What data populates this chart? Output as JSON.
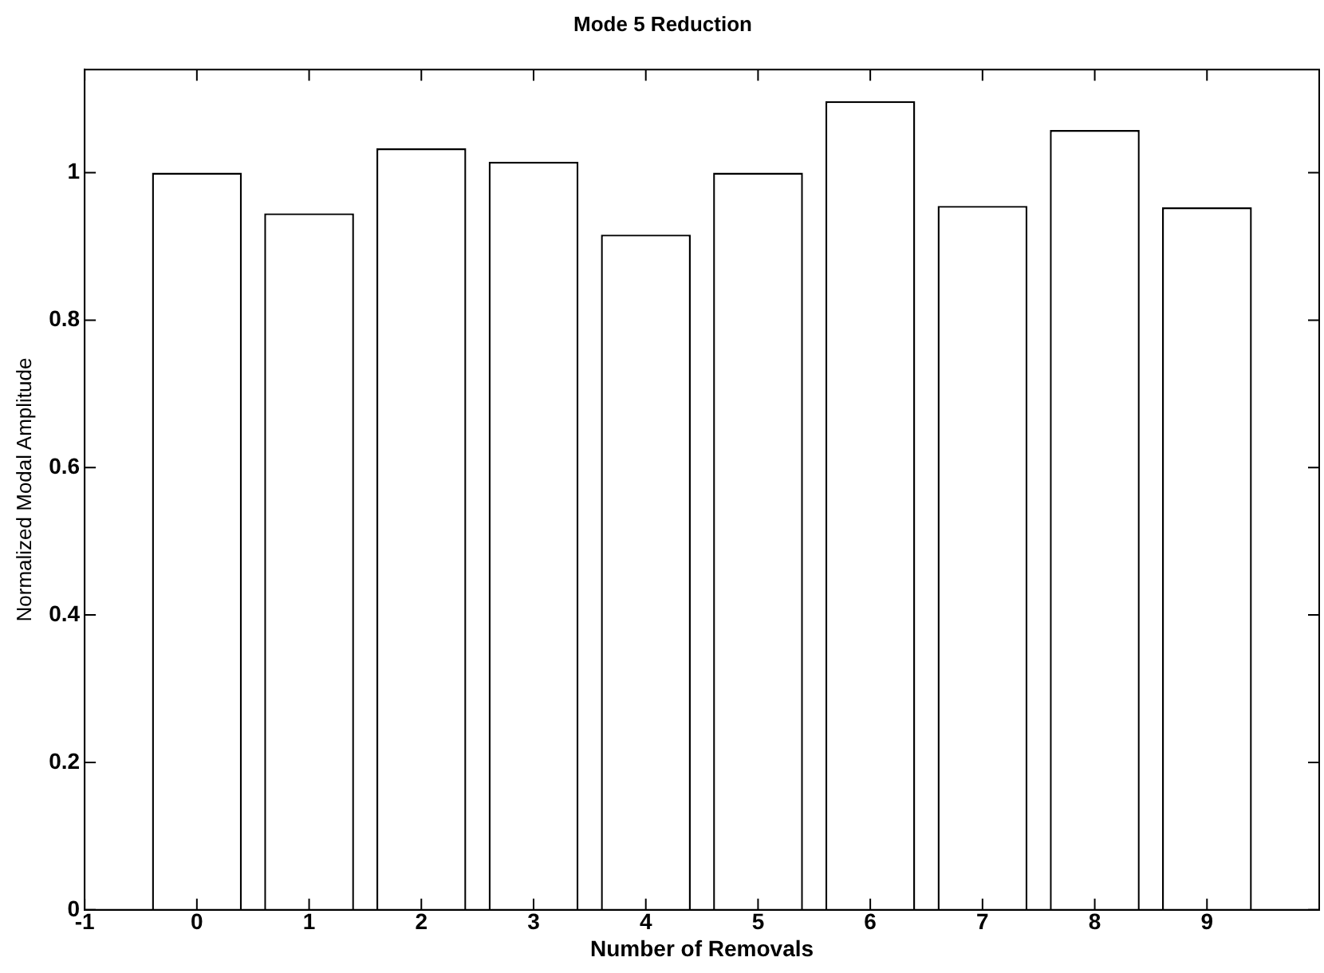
{
  "chart_data": {
    "type": "bar",
    "title": "Mode 5 Reduction",
    "xlabel": "Number of Removals",
    "ylabel": "Normalized Modal Amplitude",
    "x": [
      0,
      1,
      2,
      3,
      4,
      5,
      6,
      7,
      8,
      9
    ],
    "values": [
      1.0,
      0.945,
      1.033,
      1.015,
      0.916,
      1.0,
      1.097,
      0.955,
      1.058,
      0.953
    ],
    "color": "#ffffff",
    "xlim": [
      -1,
      10
    ],
    "xticks": [
      -1,
      0,
      1,
      2,
      3,
      4,
      5,
      6,
      7,
      8,
      9
    ],
    "ylim": [
      0,
      1.14
    ],
    "yticks": [
      0,
      0.2,
      0.4,
      0.6,
      0.8,
      1
    ],
    "grid": false,
    "legend": false
  }
}
